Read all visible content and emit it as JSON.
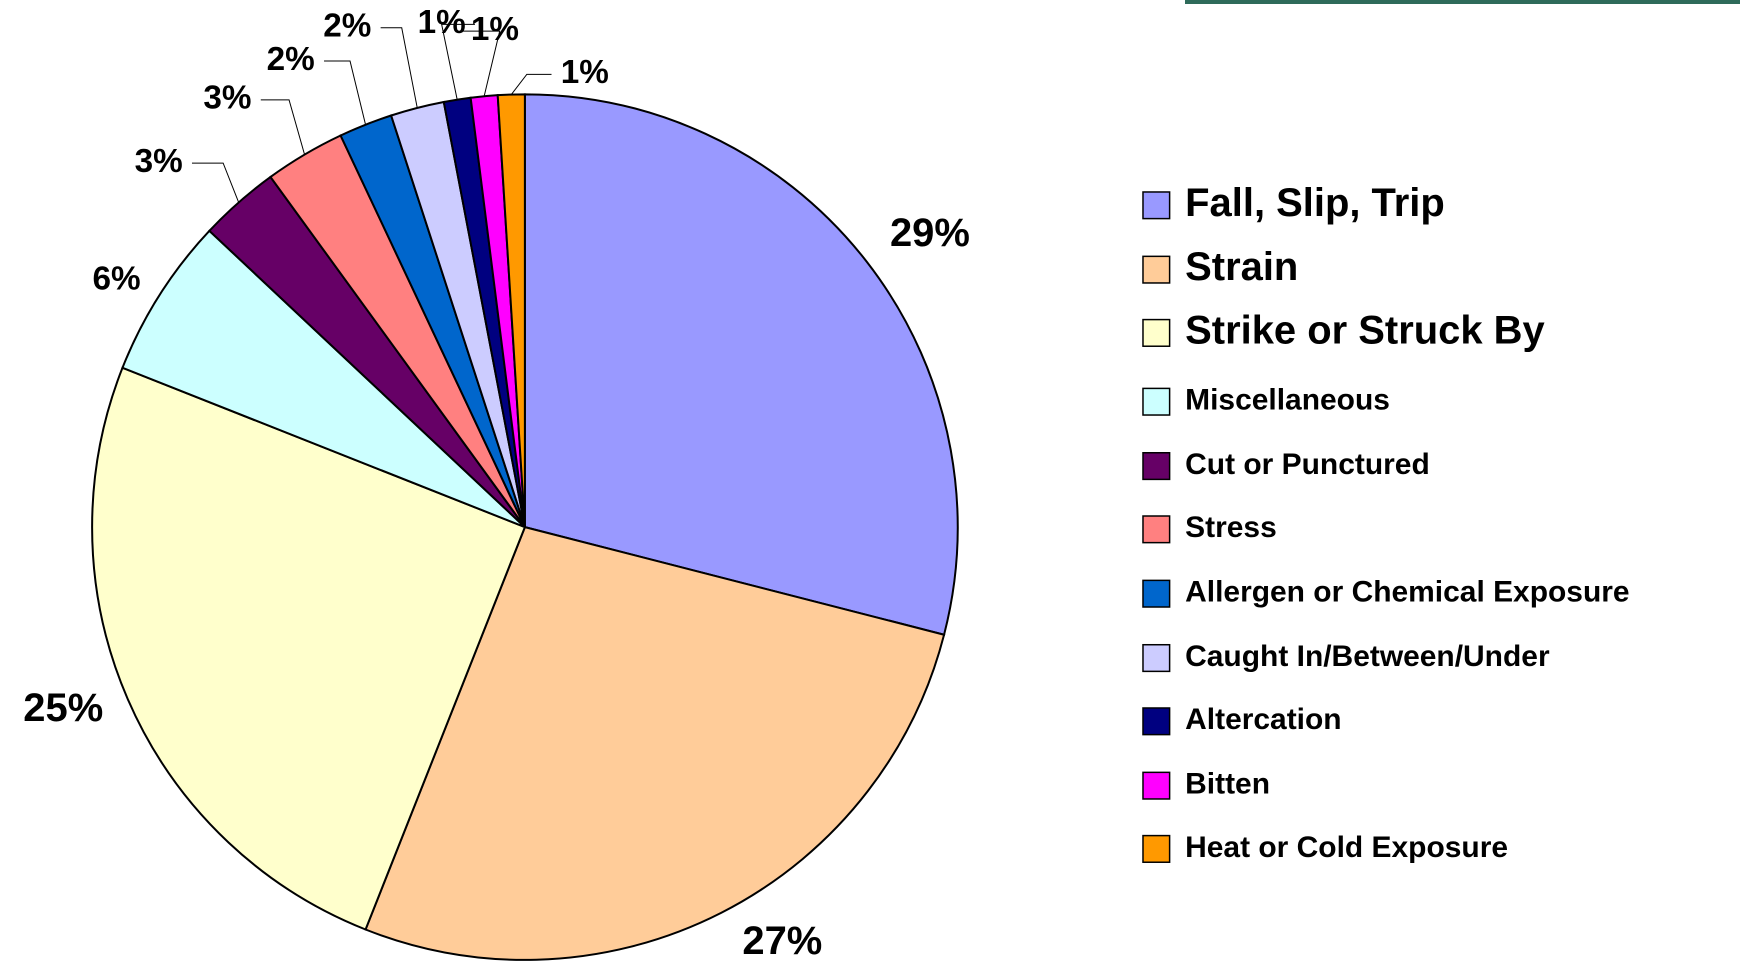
{
  "chart_data": {
    "type": "pie",
    "categories": [
      "Fall, Slip, Trip",
      "Strain",
      "Strike or Struck By",
      "Miscellaneous",
      "Cut or Punctured",
      "Stress",
      "Allergen or Chemical Exposure",
      "Caught In/Between/Under",
      "Altercation",
      "Bitten",
      "Heat or Cold Exposure"
    ],
    "values": [
      29,
      27,
      25,
      6,
      3,
      3,
      2,
      2,
      1,
      1,
      1
    ],
    "value_labels": [
      "29%",
      "27%",
      "25%",
      "6%",
      "3%",
      "3%",
      "2%",
      "2%",
      "1%",
      "1%",
      "1%"
    ],
    "colors": [
      "#9999ff",
      "#ffcc99",
      "#ffffcc",
      "#ccffff",
      "#660066",
      "#ff8080",
      "#0066cc",
      "#ccccff",
      "#000080",
      "#ff00ff",
      "#ff9900"
    ],
    "legend": "right"
  }
}
